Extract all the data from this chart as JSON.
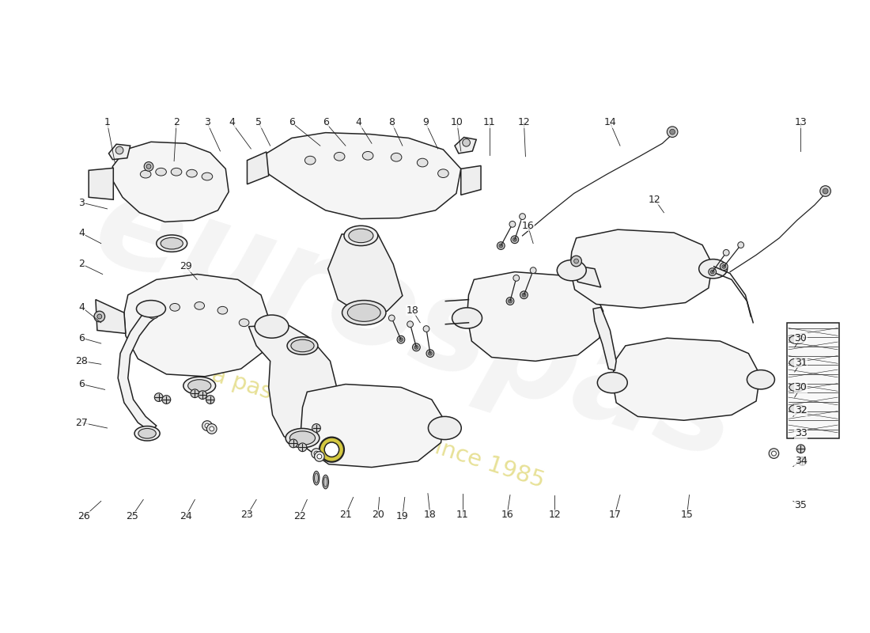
{
  "background_color": "#ffffff",
  "watermark_text1": "eurospas",
  "watermark_text2": "a passion for parts since 1985",
  "watermark_color1": "#d8d8d8",
  "watermark_color2": "#d4c840",
  "line_color": "#222222",
  "part_fill": "#f5f5f5",
  "part_fill2": "#eeeeee",
  "label_fontsize": 9,
  "lw": 1.1,
  "top_labels": [
    [
      "1",
      108,
      148
    ],
    [
      "2",
      198,
      148
    ],
    [
      "3",
      238,
      148
    ],
    [
      "4",
      270,
      148
    ],
    [
      "5",
      305,
      148
    ],
    [
      "6",
      348,
      148
    ],
    [
      "6",
      392,
      148
    ],
    [
      "4",
      435,
      148
    ],
    [
      "8",
      478,
      148
    ],
    [
      "9",
      522,
      148
    ],
    [
      "10",
      563,
      148
    ],
    [
      "11",
      605,
      148
    ],
    [
      "12",
      650,
      148
    ],
    [
      "14",
      762,
      148
    ],
    [
      "13",
      1010,
      148
    ]
  ],
  "left_labels": [
    [
      "3",
      75,
      250
    ],
    [
      "4",
      75,
      290
    ],
    [
      "2",
      75,
      330
    ],
    [
      "29",
      210,
      335
    ],
    [
      "4",
      75,
      390
    ],
    [
      "6",
      75,
      430
    ],
    [
      "28",
      75,
      460
    ],
    [
      "6",
      75,
      488
    ],
    [
      "27",
      75,
      538
    ]
  ],
  "bottom_labels": [
    [
      "26",
      78,
      660
    ],
    [
      "25",
      140,
      660
    ],
    [
      "24",
      210,
      660
    ],
    [
      "23",
      290,
      658
    ],
    [
      "22",
      358,
      660
    ],
    [
      "21",
      418,
      658
    ],
    [
      "20",
      460,
      658
    ],
    [
      "19",
      492,
      660
    ],
    [
      "18",
      528,
      658
    ],
    [
      "11",
      570,
      658
    ],
    [
      "16",
      628,
      658
    ],
    [
      "12",
      690,
      658
    ],
    [
      "17",
      768,
      658
    ],
    [
      "15",
      862,
      658
    ]
  ],
  "right_labels": [
    [
      "30",
      1010,
      428
    ],
    [
      "31",
      1010,
      460
    ],
    [
      "30",
      1010,
      492
    ],
    [
      "32",
      1010,
      522
    ],
    [
      "33",
      1010,
      552
    ],
    [
      "34",
      1010,
      590
    ],
    [
      "35",
      1010,
      645
    ]
  ],
  "mid_labels": [
    [
      "16",
      655,
      282
    ],
    [
      "18",
      505,
      392
    ],
    [
      "12",
      820,
      248
    ]
  ]
}
